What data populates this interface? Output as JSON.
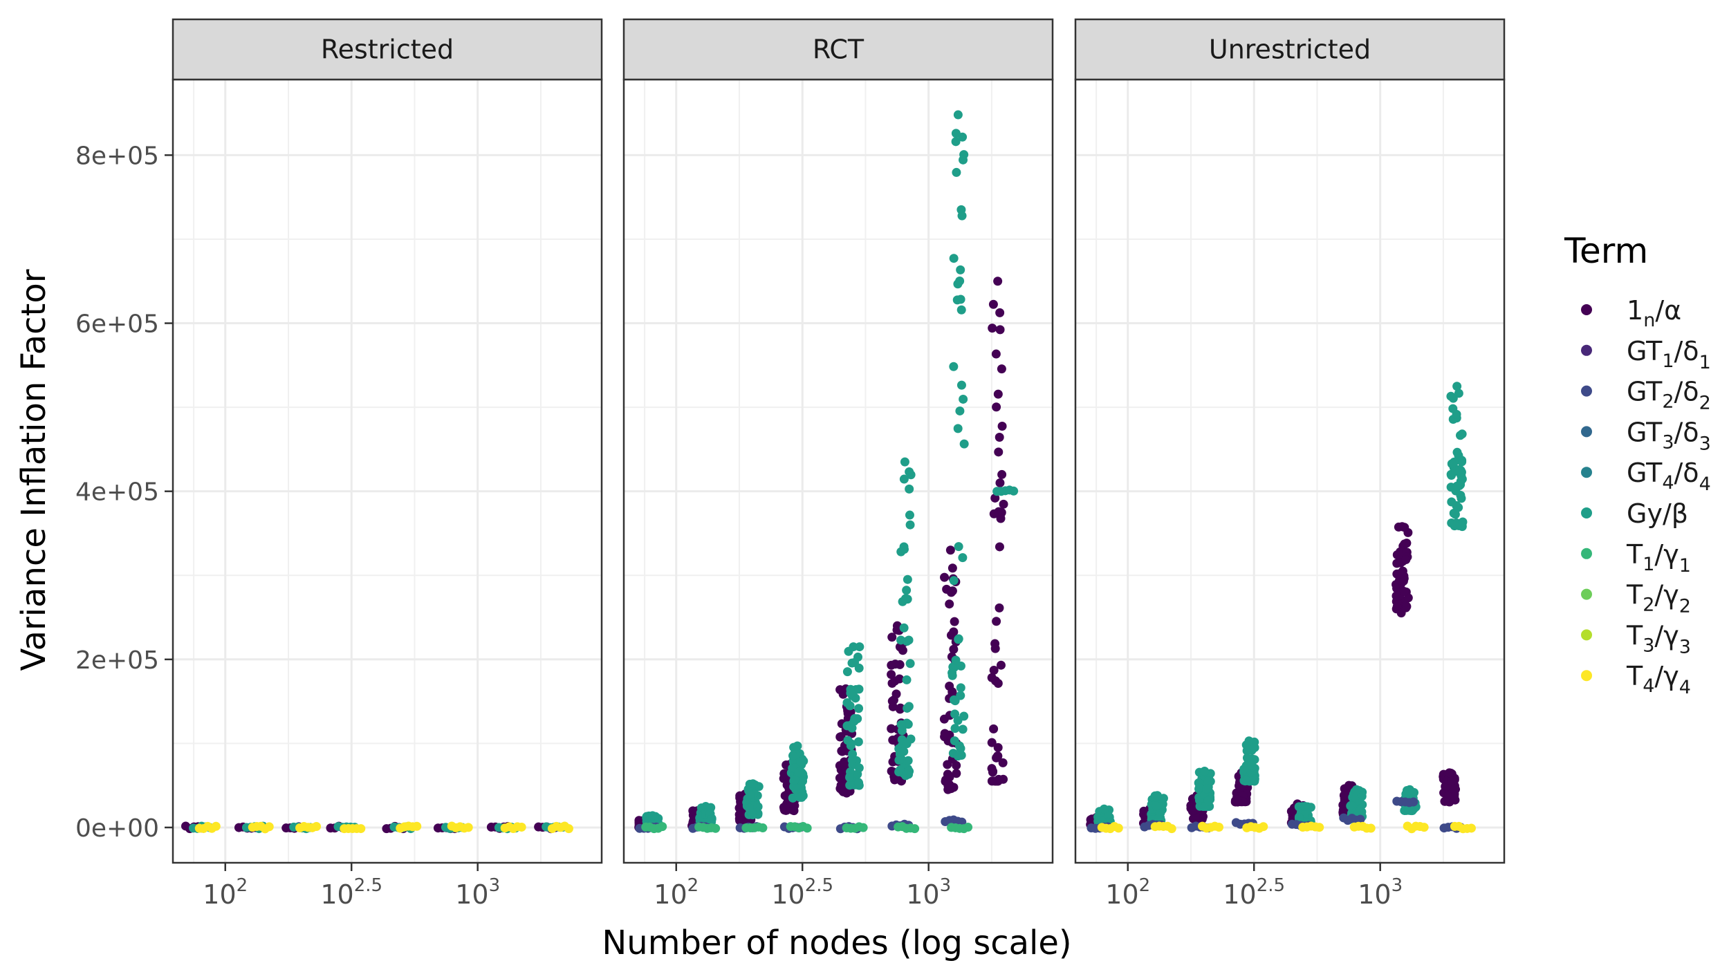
{
  "chart_data": {
    "type": "scatter",
    "facets": [
      "Restricted",
      "RCT",
      "Unrestricted"
    ],
    "xlabel": "Number of nodes (log scale)",
    "ylabel": "Variance Inflation Factor",
    "x_scale": "log10",
    "x_ticks": [
      {
        "value": 100,
        "base": "10",
        "exp": "2"
      },
      {
        "value": 316.23,
        "base": "10",
        "exp": "2.5"
      },
      {
        "value": 1000,
        "base": "10",
        "exp": "3"
      }
    ],
    "xlim": [
      62,
      3100
    ],
    "y_ticks": [
      "0e+00",
      "2e+05",
      "4e+05",
      "6e+05",
      "8e+05"
    ],
    "y_tick_values": [
      0,
      200000,
      400000,
      600000,
      800000
    ],
    "ylim": [
      -42000,
      890000
    ],
    "grid": true,
    "legend": {
      "title": "Term",
      "position": "right",
      "entries": [
        {
          "name": "1",
          "sub": "n",
          "after": "/α",
          "color": "#440154"
        },
        {
          "name": "GT",
          "sub": "1",
          "after": "/δ",
          "sub2": "1",
          "color": "#482878"
        },
        {
          "name": "GT",
          "sub": "2",
          "after": "/δ",
          "sub2": "2",
          "color": "#3E4A89"
        },
        {
          "name": "GT",
          "sub": "3",
          "after": "/δ",
          "sub2": "3",
          "color": "#31688E"
        },
        {
          "name": "GT",
          "sub": "4",
          "after": "/δ",
          "sub2": "4",
          "color": "#26828E"
        },
        {
          "name": "Gy",
          "sub": "",
          "after": "/β",
          "color": "#1F9E89"
        },
        {
          "name": "T",
          "sub": "1",
          "after": "/γ",
          "sub2": "1",
          "color": "#35B779"
        },
        {
          "name": "T",
          "sub": "2",
          "after": "/γ",
          "sub2": "2",
          "color": "#6DCD59"
        },
        {
          "name": "T",
          "sub": "3",
          "after": "/γ",
          "sub2": "3",
          "color": "#B4DE2C"
        },
        {
          "name": "T",
          "sub": "4",
          "after": "/γ",
          "sub2": "4",
          "color": "#FDE725"
        }
      ]
    },
    "node_groups": [
      80,
      130,
      200,
      300,
      500,
      800,
      1300,
      2000
    ],
    "series": [
      {
        "facet": "Restricted",
        "term_index": 0,
        "points": [
          [
            80,
            0
          ],
          [
            130,
            0
          ],
          [
            200,
            0
          ],
          [
            300,
            0
          ],
          [
            500,
            0
          ],
          [
            800,
            0
          ],
          [
            1300,
            0
          ],
          [
            2000,
            0
          ]
        ]
      },
      {
        "facet": "Restricted",
        "term_index": 5,
        "points": [
          [
            80,
            0
          ],
          [
            130,
            0
          ],
          [
            200,
            0
          ],
          [
            300,
            0
          ],
          [
            500,
            0
          ],
          [
            800,
            0
          ],
          [
            1300,
            0
          ],
          [
            2000,
            0
          ]
        ]
      },
      {
        "facet": "Restricted",
        "term_index": 9,
        "points": [
          [
            80,
            0
          ],
          [
            130,
            0
          ],
          [
            200,
            0
          ],
          [
            300,
            0
          ],
          [
            500,
            0
          ],
          [
            800,
            0
          ],
          [
            1300,
            0
          ],
          [
            2000,
            0
          ]
        ]
      },
      {
        "facet": "RCT",
        "term_index": 0,
        "points": [
          [
            80,
            5000
          ],
          [
            130,
            12000
          ],
          [
            200,
            27000
          ],
          [
            300,
            55000
          ],
          [
            500,
            110000
          ],
          [
            800,
            150000
          ],
          [
            1300,
            230000
          ],
          [
            2000,
            330000
          ]
        ],
        "ranges": [
          [
            80,
            0,
            9000
          ],
          [
            130,
            2000,
            20000
          ],
          [
            200,
            8000,
            40000
          ],
          [
            300,
            20000,
            75000
          ],
          [
            500,
            40000,
            165000
          ],
          [
            800,
            55000,
            240000
          ],
          [
            1300,
            45000,
            330000
          ],
          [
            2000,
            55000,
            650000
          ]
        ]
      },
      {
        "facet": "RCT",
        "term_index": 5,
        "points": [
          [
            80,
            8000
          ],
          [
            130,
            16000
          ],
          [
            200,
            33000
          ],
          [
            300,
            70000
          ],
          [
            500,
            130000
          ],
          [
            800,
            200000
          ],
          [
            1300,
            300000
          ],
          [
            2000,
            400000
          ]
        ],
        "ranges": [
          [
            80,
            2000,
            14000
          ],
          [
            130,
            5000,
            25000
          ],
          [
            200,
            15000,
            52000
          ],
          [
            300,
            35000,
            97000
          ],
          [
            500,
            50000,
            215000
          ],
          [
            800,
            60000,
            435000
          ],
          [
            1300,
            85000,
            848000
          ]
        ]
      },
      {
        "facet": "RCT",
        "term_index": 2,
        "points": [
          [
            80,
            0
          ],
          [
            130,
            0
          ],
          [
            200,
            0
          ],
          [
            300,
            0
          ],
          [
            500,
            0
          ],
          [
            800,
            3000
          ],
          [
            1300,
            8000
          ]
        ]
      },
      {
        "facet": "RCT",
        "term_index": 6,
        "points": [
          [
            80,
            0
          ],
          [
            130,
            0
          ],
          [
            200,
            0
          ],
          [
            300,
            0
          ],
          [
            500,
            0
          ],
          [
            800,
            0
          ],
          [
            1300,
            0
          ]
        ]
      },
      {
        "facet": "Unrestricted",
        "term_index": 0,
        "points": [
          [
            80,
            5000
          ],
          [
            130,
            13000
          ],
          [
            200,
            25000
          ],
          [
            300,
            50000
          ],
          [
            500,
            15000
          ],
          [
            800,
            35000
          ],
          [
            1300,
            300000
          ],
          [
            2000,
            45000
          ]
        ],
        "ranges": [
          [
            80,
            0,
            12000
          ],
          [
            130,
            3000,
            22000
          ],
          [
            200,
            10000,
            38000
          ],
          [
            300,
            30000,
            65000
          ],
          [
            500,
            5000,
            28000
          ],
          [
            800,
            15000,
            50000
          ],
          [
            1300,
            255000,
            358000
          ],
          [
            2000,
            30000,
            65000
          ]
        ]
      },
      {
        "facet": "Unrestricted",
        "term_index": 5,
        "points": [
          [
            80,
            10000
          ],
          [
            130,
            22000
          ],
          [
            200,
            45000
          ],
          [
            300,
            80000
          ],
          [
            500,
            15000
          ],
          [
            800,
            25000
          ],
          [
            1300,
            30000
          ],
          [
            2000,
            420000
          ]
        ],
        "ranges": [
          [
            80,
            3000,
            22000
          ],
          [
            130,
            8000,
            38000
          ],
          [
            200,
            25000,
            67000
          ],
          [
            300,
            55000,
            103000
          ],
          [
            500,
            5000,
            25000
          ],
          [
            800,
            10000,
            45000
          ],
          [
            1300,
            20000,
            45000
          ],
          [
            2000,
            358000,
            525000
          ]
        ]
      },
      {
        "facet": "Unrestricted",
        "term_index": 2,
        "points": [
          [
            80,
            0
          ],
          [
            130,
            2000
          ],
          [
            200,
            0
          ],
          [
            300,
            5000
          ],
          [
            500,
            3000
          ],
          [
            800,
            10000
          ],
          [
            1300,
            30000
          ],
          [
            2000,
            0
          ]
        ]
      },
      {
        "facet": "Unrestricted",
        "term_index": 9,
        "points": [
          [
            80,
            0
          ],
          [
            130,
            0
          ],
          [
            200,
            0
          ],
          [
            300,
            0
          ],
          [
            500,
            0
          ],
          [
            800,
            0
          ],
          [
            1300,
            0
          ],
          [
            2000,
            0
          ]
        ]
      }
    ]
  }
}
